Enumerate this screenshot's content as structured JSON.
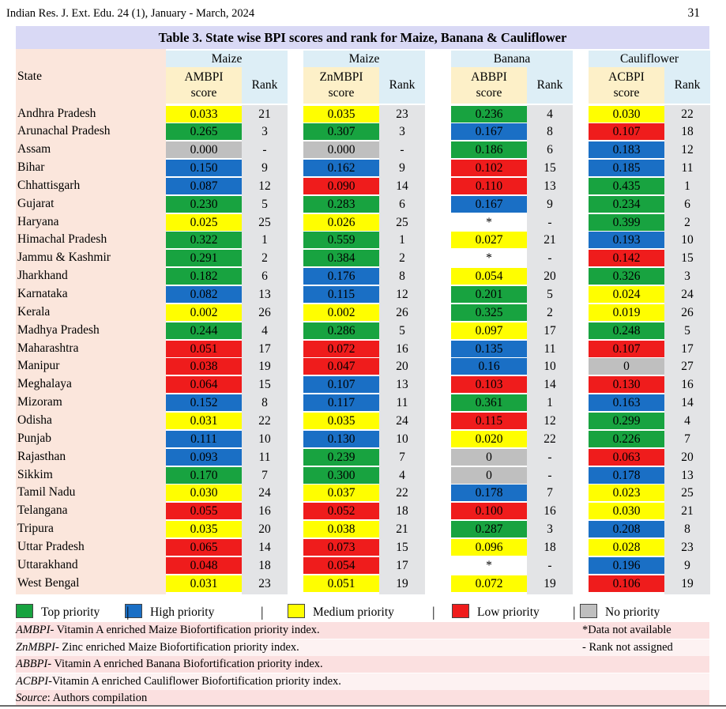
{
  "header": {
    "journal": "Indian Res. J. Ext. Edu. 24 (1), January - March, 2024",
    "page": "31"
  },
  "title": "Table 3. State wise BPI scores and rank for Maize, Banana & Cauliflower",
  "colors": {
    "top": "#18a340",
    "high": "#1a6fc5",
    "medium": "#fffe00",
    "low": "#ef1c1c",
    "none": "#bfbfbf"
  },
  "columns": {
    "state": "State",
    "groups": [
      {
        "crop": "Maize",
        "score_line1": "AMBPI",
        "score_line2": "score",
        "rank": "Rank"
      },
      {
        "crop": "Maize",
        "score_line1": "ZnMBPI",
        "score_line2": "score",
        "rank": "Rank"
      },
      {
        "crop": "Banana",
        "score_line1": "ABBPI",
        "score_line2": "score",
        "rank": "Rank"
      },
      {
        "crop": "Cauliflower",
        "score_line1": "ACBPI",
        "score_line2": "score",
        "rank": "Rank"
      }
    ]
  },
  "rows": [
    {
      "state": "Andhra Pradesh",
      "cells": [
        [
          "0.033",
          "21",
          "medium"
        ],
        [
          "0.035",
          "23",
          "medium"
        ],
        [
          "0.236",
          "4",
          "top"
        ],
        [
          "0.030",
          "22",
          "medium"
        ]
      ]
    },
    {
      "state": "Arunachal Pradesh",
      "cells": [
        [
          "0.265",
          "3",
          "top"
        ],
        [
          "0.307",
          "3",
          "top"
        ],
        [
          "0.167",
          "8",
          "high"
        ],
        [
          "0.107",
          "18",
          "low"
        ]
      ]
    },
    {
      "state": "Assam",
      "cells": [
        [
          "0.000",
          "-",
          "none"
        ],
        [
          "0.000",
          "-",
          "none"
        ],
        [
          "0.186",
          "6",
          "top"
        ],
        [
          "0.183",
          "12",
          "high"
        ]
      ]
    },
    {
      "state": "Bihar",
      "cells": [
        [
          "0.150",
          "9",
          "high"
        ],
        [
          "0.162",
          "9",
          "high"
        ],
        [
          "0.102",
          "15",
          "low"
        ],
        [
          "0.185",
          "11",
          "high"
        ]
      ]
    },
    {
      "state": "Chhattisgarh",
      "cells": [
        [
          "0.087",
          "12",
          "high"
        ],
        [
          "0.090",
          "14",
          "low"
        ],
        [
          "0.110",
          "13",
          "low"
        ],
        [
          "0.435",
          "1",
          "top"
        ]
      ]
    },
    {
      "state": "Gujarat",
      "cells": [
        [
          "0.230",
          "5",
          "top"
        ],
        [
          "0.283",
          "6",
          "top"
        ],
        [
          "0.167",
          "9",
          "high"
        ],
        [
          "0.234",
          "6",
          "top"
        ]
      ]
    },
    {
      "state": "Haryana",
      "cells": [
        [
          "0.025",
          "25",
          "medium"
        ],
        [
          "0.026",
          "25",
          "medium"
        ],
        [
          "*",
          "-",
          "blank"
        ],
        [
          "0.399",
          "2",
          "top"
        ]
      ]
    },
    {
      "state": "Himachal Pradesh",
      "cells": [
        [
          "0.322",
          "1",
          "top"
        ],
        [
          "0.559",
          "1",
          "top"
        ],
        [
          "0.027",
          "21",
          "medium"
        ],
        [
          "0.193",
          "10",
          "high"
        ]
      ]
    },
    {
      "state": "Jammu & Kashmir",
      "cells": [
        [
          "0.291",
          "2",
          "top"
        ],
        [
          "0.384",
          "2",
          "top"
        ],
        [
          "*",
          "-",
          "blank"
        ],
        [
          "0.142",
          "15",
          "low"
        ]
      ]
    },
    {
      "state": "Jharkhand",
      "cells": [
        [
          "0.182",
          "6",
          "top"
        ],
        [
          "0.176",
          "8",
          "high"
        ],
        [
          "0.054",
          "20",
          "medium"
        ],
        [
          "0.326",
          "3",
          "top"
        ]
      ]
    },
    {
      "state": "Karnataka",
      "cells": [
        [
          "0.082",
          "13",
          "high"
        ],
        [
          "0.115",
          "12",
          "high"
        ],
        [
          "0.201",
          "5",
          "top"
        ],
        [
          "0.024",
          "24",
          "medium"
        ]
      ]
    },
    {
      "state": "Kerala",
      "cells": [
        [
          "0.002",
          "26",
          "medium"
        ],
        [
          "0.002",
          "26",
          "medium"
        ],
        [
          "0.325",
          "2",
          "top"
        ],
        [
          "0.019",
          "26",
          "medium"
        ]
      ]
    },
    {
      "state": "Madhya Pradesh",
      "cells": [
        [
          "0.244",
          "4",
          "top"
        ],
        [
          "0.286",
          "5",
          "top"
        ],
        [
          "0.097",
          "17",
          "medium"
        ],
        [
          "0.248",
          "5",
          "top"
        ]
      ]
    },
    {
      "state": "Maharashtra",
      "cells": [
        [
          "0.051",
          "17",
          "low"
        ],
        [
          "0.072",
          "16",
          "low"
        ],
        [
          "0.135",
          "11",
          "high"
        ],
        [
          "0.107",
          "17",
          "low"
        ]
      ]
    },
    {
      "state": "Manipur",
      "cells": [
        [
          "0.038",
          "19",
          "low"
        ],
        [
          "0.047",
          "20",
          "low"
        ],
        [
          "0.16",
          "10",
          "high"
        ],
        [
          "0",
          "27",
          "none"
        ]
      ]
    },
    {
      "state": "Meghalaya",
      "cells": [
        [
          "0.064",
          "15",
          "low"
        ],
        [
          "0.107",
          "13",
          "high"
        ],
        [
          "0.103",
          "14",
          "low"
        ],
        [
          "0.130",
          "16",
          "low"
        ]
      ]
    },
    {
      "state": "Mizoram",
      "cells": [
        [
          "0.152",
          "8",
          "high"
        ],
        [
          "0.117",
          "11",
          "high"
        ],
        [
          "0.361",
          "1",
          "top"
        ],
        [
          "0.163",
          "14",
          "high"
        ]
      ]
    },
    {
      "state": "Odisha",
      "cells": [
        [
          "0.031",
          "22",
          "medium"
        ],
        [
          "0.035",
          "24",
          "medium"
        ],
        [
          "0.115",
          "12",
          "low"
        ],
        [
          "0.299",
          "4",
          "top"
        ]
      ]
    },
    {
      "state": "Punjab",
      "cells": [
        [
          "0.111",
          "10",
          "high"
        ],
        [
          "0.130",
          "10",
          "high"
        ],
        [
          "0.020",
          "22",
          "medium"
        ],
        [
          "0.226",
          "7",
          "top"
        ]
      ]
    },
    {
      "state": "Rajasthan",
      "cells": [
        [
          "0.093",
          "11",
          "high"
        ],
        [
          "0.239",
          "7",
          "top"
        ],
        [
          "0",
          "-",
          "none"
        ],
        [
          "0.063",
          "20",
          "low"
        ]
      ]
    },
    {
      "state": "Sikkim",
      "cells": [
        [
          "0.170",
          "7",
          "top"
        ],
        [
          "0.300",
          "4",
          "top"
        ],
        [
          "0",
          "-",
          "none"
        ],
        [
          "0.178",
          "13",
          "high"
        ]
      ]
    },
    {
      "state": "Tamil Nadu",
      "cells": [
        [
          "0.030",
          "24",
          "medium"
        ],
        [
          "0.037",
          "22",
          "medium"
        ],
        [
          "0.178",
          "7",
          "high"
        ],
        [
          "0.023",
          "25",
          "medium"
        ]
      ]
    },
    {
      "state": "Telangana",
      "cells": [
        [
          "0.055",
          "16",
          "low"
        ],
        [
          "0.052",
          "18",
          "low"
        ],
        [
          "0.100",
          "16",
          "low"
        ],
        [
          "0.030",
          "21",
          "medium"
        ]
      ]
    },
    {
      "state": "Tripura",
      "cells": [
        [
          "0.035",
          "20",
          "medium"
        ],
        [
          "0.038",
          "21",
          "medium"
        ],
        [
          "0.287",
          "3",
          "top"
        ],
        [
          "0.208",
          "8",
          "high"
        ]
      ]
    },
    {
      "state": "Uttar Pradesh",
      "cells": [
        [
          "0.065",
          "14",
          "low"
        ],
        [
          "0.073",
          "15",
          "low"
        ],
        [
          "0.096",
          "18",
          "medium"
        ],
        [
          "0.028",
          "23",
          "medium"
        ]
      ]
    },
    {
      "state": "Uttarakhand",
      "cells": [
        [
          "0.048",
          "18",
          "low"
        ],
        [
          "0.054",
          "17",
          "low"
        ],
        [
          "*",
          "-",
          "blank"
        ],
        [
          "0.196",
          "9",
          "high"
        ]
      ]
    },
    {
      "state": "West Bengal",
      "cells": [
        [
          "0.031",
          "23",
          "medium"
        ],
        [
          "0.051",
          "19",
          "medium"
        ],
        [
          "0.072",
          "19",
          "medium"
        ],
        [
          "0.106",
          "19",
          "low"
        ]
      ]
    }
  ],
  "legend": [
    {
      "key": "top",
      "label": "Top priority"
    },
    {
      "key": "high",
      "label": "High priority"
    },
    {
      "key": "medium",
      "label": "Medium priority"
    },
    {
      "key": "low",
      "label": "Low priority"
    },
    {
      "key": "none",
      "label": "No priority"
    }
  ],
  "legend_separator": "|",
  "notes": [
    {
      "abbr": "AMBPI",
      "text": "- Vitamin A enriched Maize Biofortification priority index.",
      "right": "*Data not available"
    },
    {
      "abbr": "ZnMBPI",
      "text": "- Zinc enriched Maize Biofortification priority index.",
      "right": "- Rank not assigned"
    },
    {
      "abbr": "ABBPI",
      "text": "- Vitamin A enriched Banana Biofortification priority index.",
      "right": ""
    },
    {
      "abbr": "ACBPI",
      "text": "-Vitamin A enriched Cauliflower Biofortification priority index.",
      "right": ""
    },
    {
      "abbr": "Source",
      "text": ": Authors compilation",
      "right": ""
    }
  ]
}
